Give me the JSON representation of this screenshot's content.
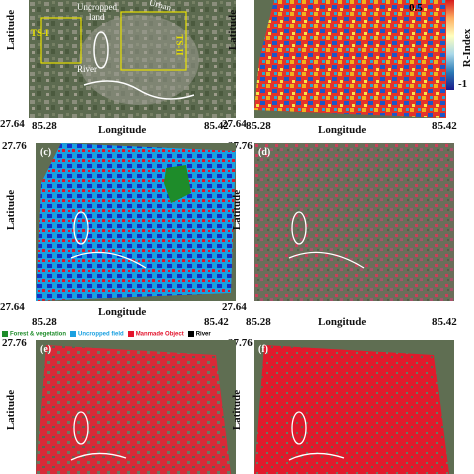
{
  "axis": {
    "latitude_label": "Latitude",
    "longitude_label": "Longitude",
    "lat_min": "27.64",
    "lat_max": "27.76",
    "lon_min": "85.28",
    "lon_max": "85.42"
  },
  "panels": {
    "a": {
      "annotations": {
        "uncropped": "Uncropped",
        "land": "land",
        "river": "River",
        "urban": "Urban",
        "ts1": "TS-I",
        "ts2": "TS-II"
      }
    },
    "b": {
      "colorbar_label": "R-Index",
      "colorbar_max": "0.5",
      "colorbar_min": "-1"
    },
    "c": {
      "label": "(c)"
    },
    "d": {
      "label": "(d)"
    },
    "e": {
      "label": "(e)"
    },
    "f": {
      "label": "(f)"
    }
  },
  "legend": [
    {
      "label": "Forest & vegetation",
      "color": "#1e8c2a"
    },
    {
      "label": "Uncropped field",
      "color": "#1aa0e0"
    },
    {
      "label": "Manmade Object",
      "color": "#e3142d"
    },
    {
      "label": "River",
      "color": "#000000"
    }
  ],
  "colors": {
    "satellite": "#5f6e52",
    "urban_red": "#e3142d",
    "field_blue": "#1aa0e0",
    "forest_green": "#1e8c2a"
  }
}
